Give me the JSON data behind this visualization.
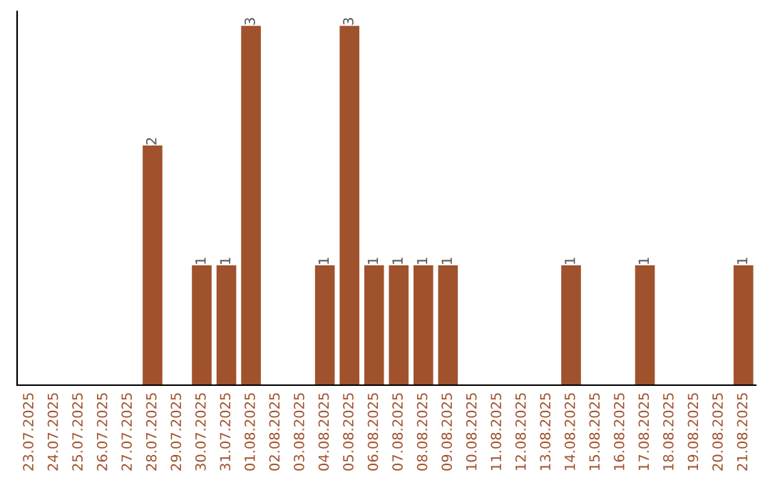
{
  "chart_data": {
    "type": "bar",
    "categories": [
      "23.07.2025",
      "24.07.2025",
      "25.07.2025",
      "26.07.2025",
      "27.07.2025",
      "28.07.2025",
      "29.07.2025",
      "30.07.2025",
      "31.07.2025",
      "01.08.2025",
      "02.08.2025",
      "03.08.2025",
      "04.08.2025",
      "05.08.2025",
      "06.08.2025",
      "07.08.2025",
      "08.08.2025",
      "09.08.2025",
      "10.08.2025",
      "11.08.2025",
      "12.08.2025",
      "13.08.2025",
      "14.08.2025",
      "15.08.2025",
      "16.08.2025",
      "17.08.2025",
      "18.08.2025",
      "19.08.2025",
      "20.08.2025",
      "21.08.2025"
    ],
    "values": [
      0,
      0,
      0,
      0,
      0,
      2,
      0,
      1,
      1,
      3,
      0,
      0,
      1,
      3,
      1,
      1,
      1,
      1,
      0,
      0,
      0,
      0,
      1,
      0,
      0,
      1,
      0,
      0,
      0,
      1
    ],
    "value_labels": [
      null,
      null,
      null,
      null,
      null,
      "2",
      null,
      "1",
      "1",
      "3",
      null,
      null,
      "1",
      "3",
      "1",
      "1",
      "1",
      "1",
      null,
      null,
      null,
      null,
      "1",
      null,
      null,
      "1",
      null,
      null,
      null,
      "1"
    ],
    "color": "#a0522d",
    "tick_labels": "x",
    "grid": false,
    "legend": false
  }
}
